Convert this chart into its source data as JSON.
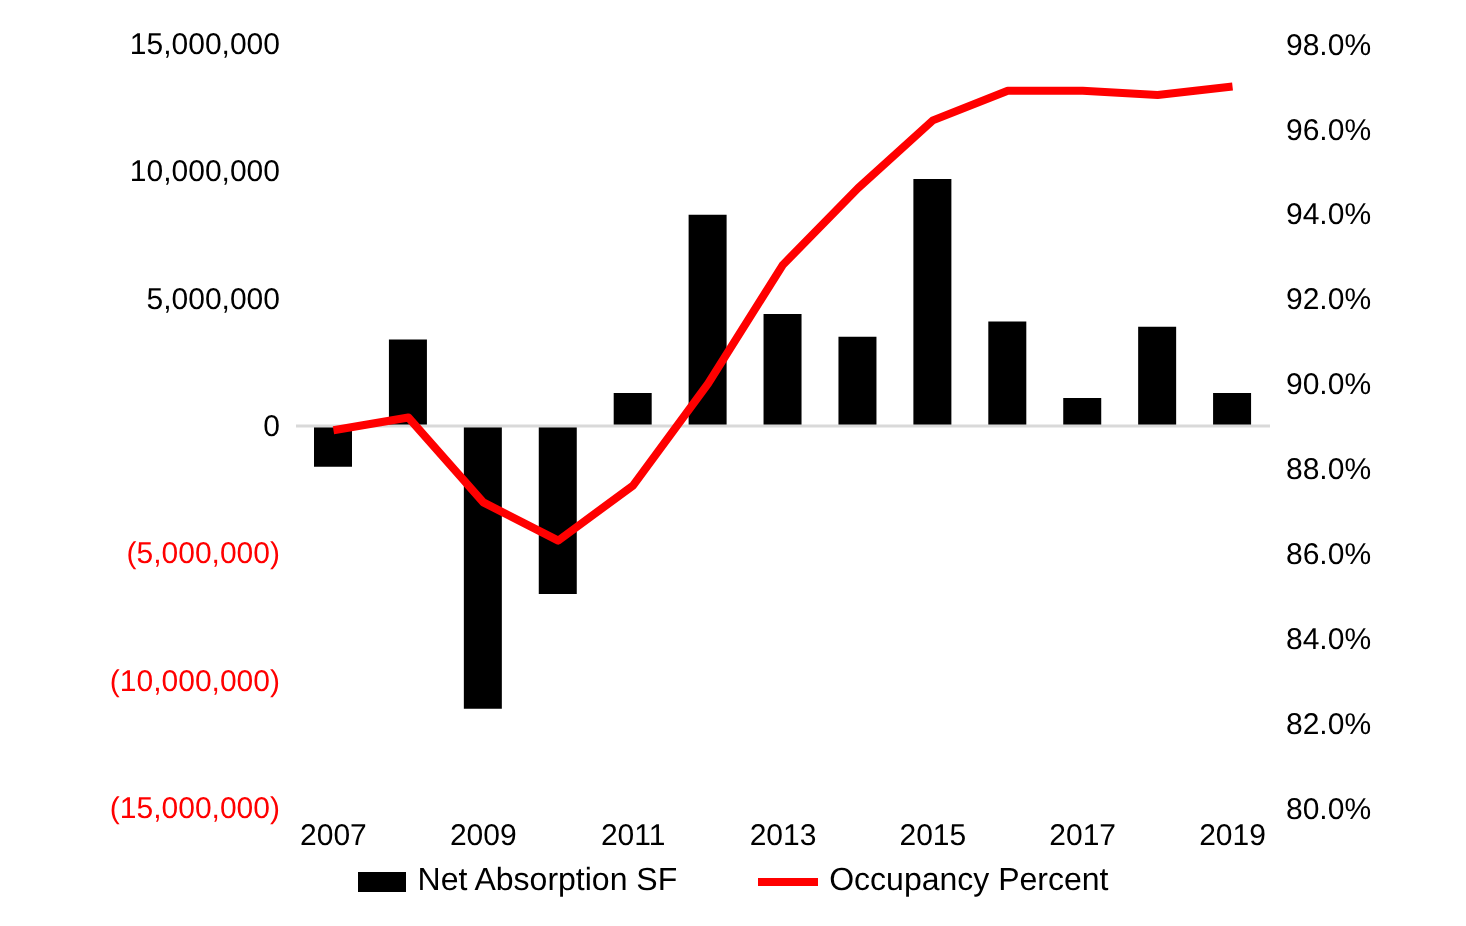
{
  "chart_data": {
    "type": "bar",
    "categories": [
      "2007",
      null,
      "2009",
      null,
      "2011",
      null,
      "2013",
      null,
      "2015",
      null,
      "2017",
      null,
      "2019"
    ],
    "series": [
      {
        "name": "Net Absorption SF",
        "color": "#000000",
        "values": [
          -1600000,
          3400000,
          -11100000,
          -6600000,
          1300000,
          8300000,
          4400000,
          3500000,
          9700000,
          4100000,
          1100000,
          3900000,
          1300000
        ]
      },
      {
        "name": "Occupancy Percent",
        "type": "line",
        "axis": "y2",
        "color": "#ff0000",
        "values": [
          88.9,
          89.2,
          87.2,
          86.3,
          87.6,
          90.0,
          92.8,
          94.6,
          96.2,
          96.9,
          96.9,
          96.8,
          97.0
        ]
      }
    ],
    "ylim": [
      -15000000,
      15000000
    ],
    "yticks": [
      {
        "value": -15000000,
        "label": "(15,000,000)"
      },
      {
        "value": -10000000,
        "label": "(10,000,000)"
      },
      {
        "value": -5000000,
        "label": "(5,000,000)"
      },
      {
        "value": 0,
        "label": "0"
      },
      {
        "value": 5000000,
        "label": "5,000,000"
      },
      {
        "value": 10000000,
        "label": "10,000,000"
      },
      {
        "value": 15000000,
        "label": "15,000,000"
      }
    ],
    "y2lim": [
      80,
      98
    ],
    "y2ticks": [
      {
        "value": 80,
        "label": "80.0%"
      },
      {
        "value": 82,
        "label": "82.0%"
      },
      {
        "value": 84,
        "label": "84.0%"
      },
      {
        "value": 86,
        "label": "86.0%"
      },
      {
        "value": 88,
        "label": "88.0%"
      },
      {
        "value": 90,
        "label": "90.0%"
      },
      {
        "value": 92,
        "label": "92.0%"
      },
      {
        "value": 94,
        "label": "94.0%"
      },
      {
        "value": 96,
        "label": "96.0%"
      },
      {
        "value": 98,
        "label": "98.0%"
      }
    ],
    "legend": "bottom",
    "marker": "none",
    "line_style": "solid"
  }
}
